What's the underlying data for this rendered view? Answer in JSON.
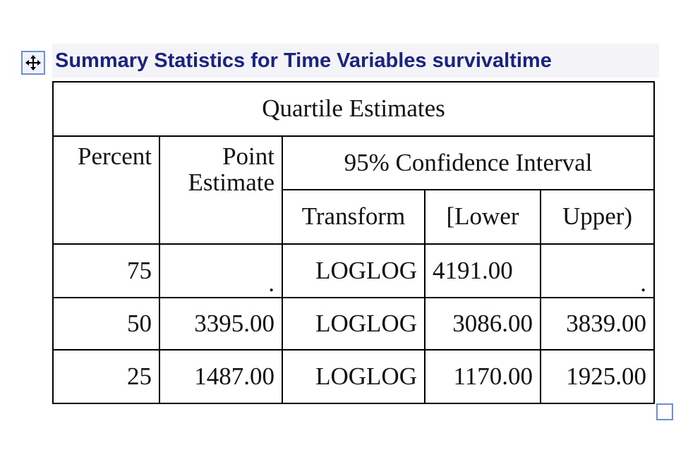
{
  "title": "Summary Statistics for Time Variables survivaltime",
  "icons": {
    "move": "move-icon",
    "resize": "resize-icon"
  },
  "colors": {
    "title": "#1a237e",
    "handle_border": "#6f8fd0"
  },
  "table": {
    "caption": "Quartile Estimates",
    "headers": {
      "percent": "Percent",
      "point_estimate_line1": "Point",
      "point_estimate_line2": "Estimate",
      "ci": "95% Confidence Interval",
      "transform": "Transform",
      "lower": "[Lower",
      "upper": "Upper)"
    },
    "rows": [
      {
        "percent": "75",
        "point": ".",
        "transform": "LOGLOG",
        "lower": "4191.00",
        "upper": "."
      },
      {
        "percent": "50",
        "point": "3395.00",
        "transform": "LOGLOG",
        "lower": "3086.00",
        "upper": "3839.00"
      },
      {
        "percent": "25",
        "point": "1487.00",
        "transform": "LOGLOG",
        "lower": "1170.00",
        "upper": "1925.00"
      }
    ]
  }
}
